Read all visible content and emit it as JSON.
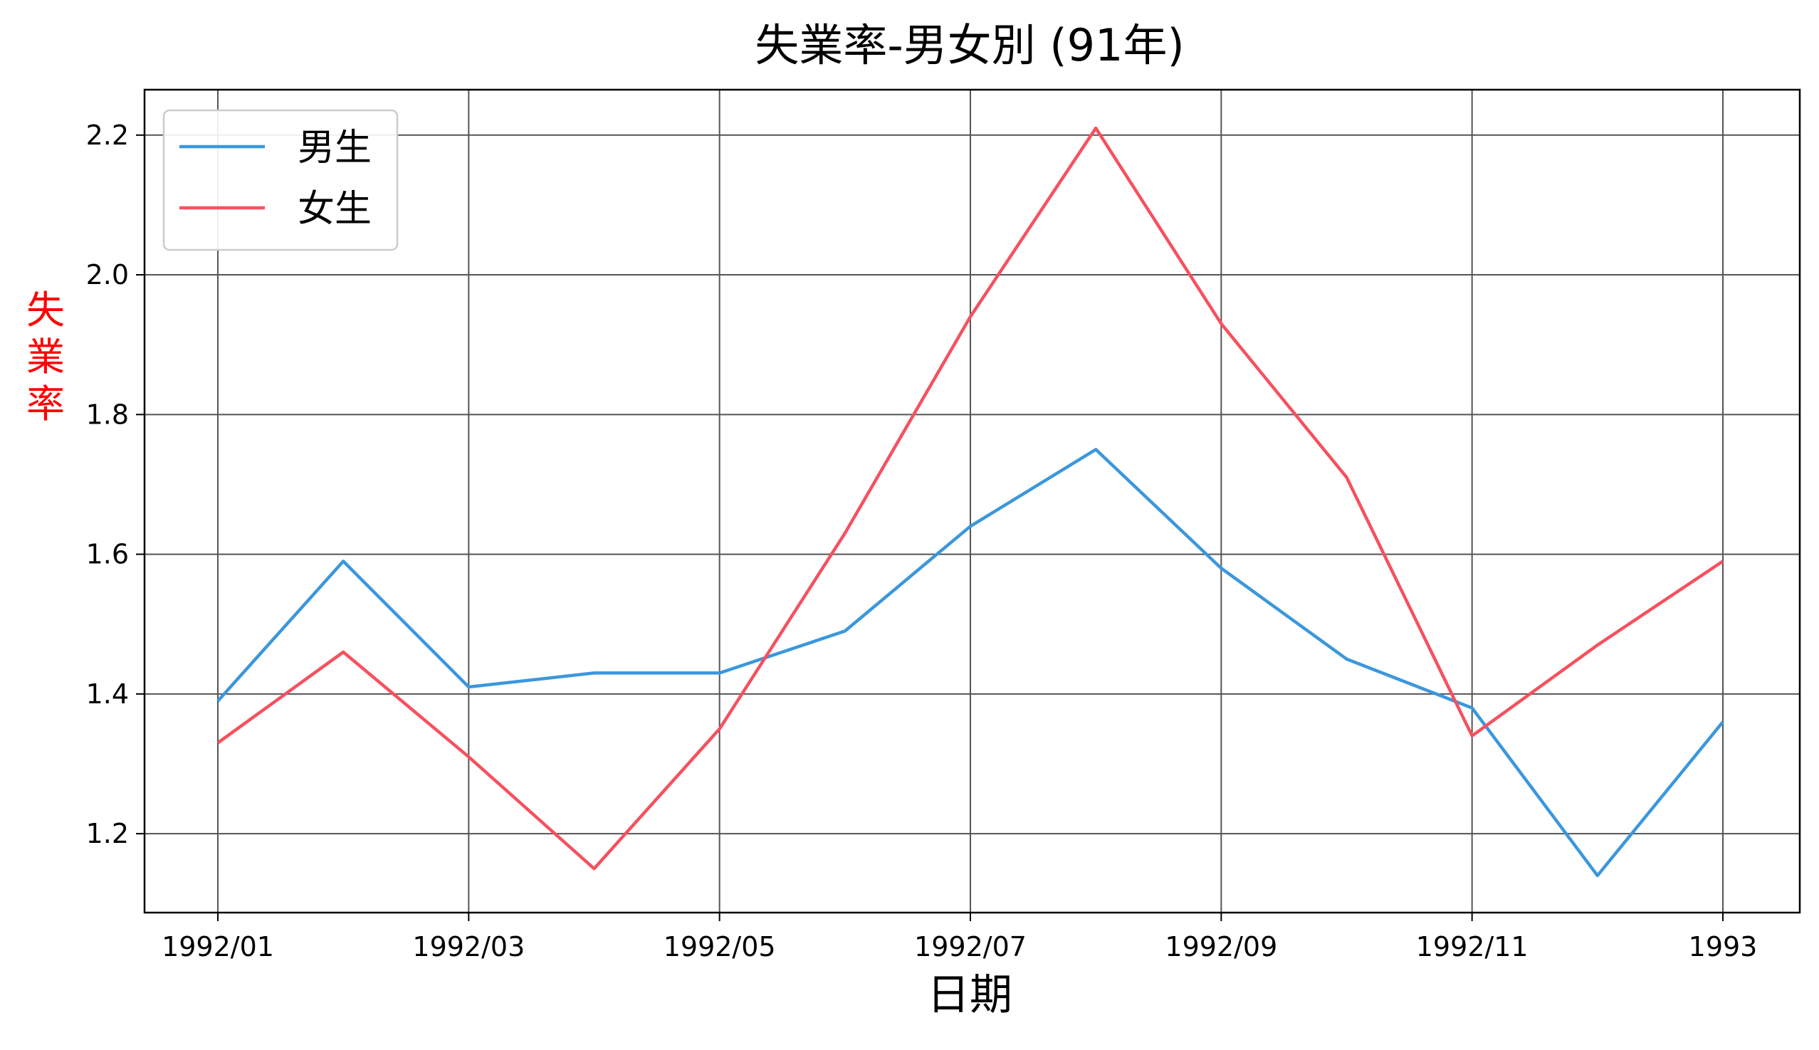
{
  "chart_data": {
    "type": "line",
    "title": "失業率-男女別 (91年)",
    "xlabel": "日期",
    "ylabel": "失業率",
    "x": [
      "1992/01",
      "1992/02",
      "1992/03",
      "1992/04",
      "1992/05",
      "1992/06",
      "1992/07",
      "1992/08",
      "1992/09",
      "1992/10",
      "1992/11",
      "1992/12",
      "1993/01"
    ],
    "x_tick_labels": [
      {
        "index": 0,
        "label": "1992/01"
      },
      {
        "index": 2,
        "label": "1992/03"
      },
      {
        "index": 4,
        "label": "1992/05"
      },
      {
        "index": 6,
        "label": "1992/07"
      },
      {
        "index": 8,
        "label": "1992/09"
      },
      {
        "index": 10,
        "label": "1992/11"
      },
      {
        "index": 12,
        "label": "1993"
      }
    ],
    "y_ticks": [
      "1.2",
      "1.4",
      "1.6",
      "1.8",
      "2.0",
      "2.2"
    ],
    "ylim": [
      1.087,
      2.265
    ],
    "grid": true,
    "legend_position": "top-left",
    "series": [
      {
        "name": "男生",
        "color": "#3b97dc",
        "values": [
          1.39,
          1.59,
          1.41,
          1.43,
          1.43,
          1.49,
          1.64,
          1.75,
          1.58,
          1.45,
          1.38,
          1.14,
          1.36
        ]
      },
      {
        "name": "女生",
        "color": "#f5515f",
        "values": [
          1.33,
          1.46,
          1.31,
          1.15,
          1.35,
          1.63,
          1.94,
          2.21,
          1.93,
          1.71,
          1.34,
          1.47,
          1.59
        ]
      }
    ],
    "ylabel_color": "#ff0000"
  }
}
